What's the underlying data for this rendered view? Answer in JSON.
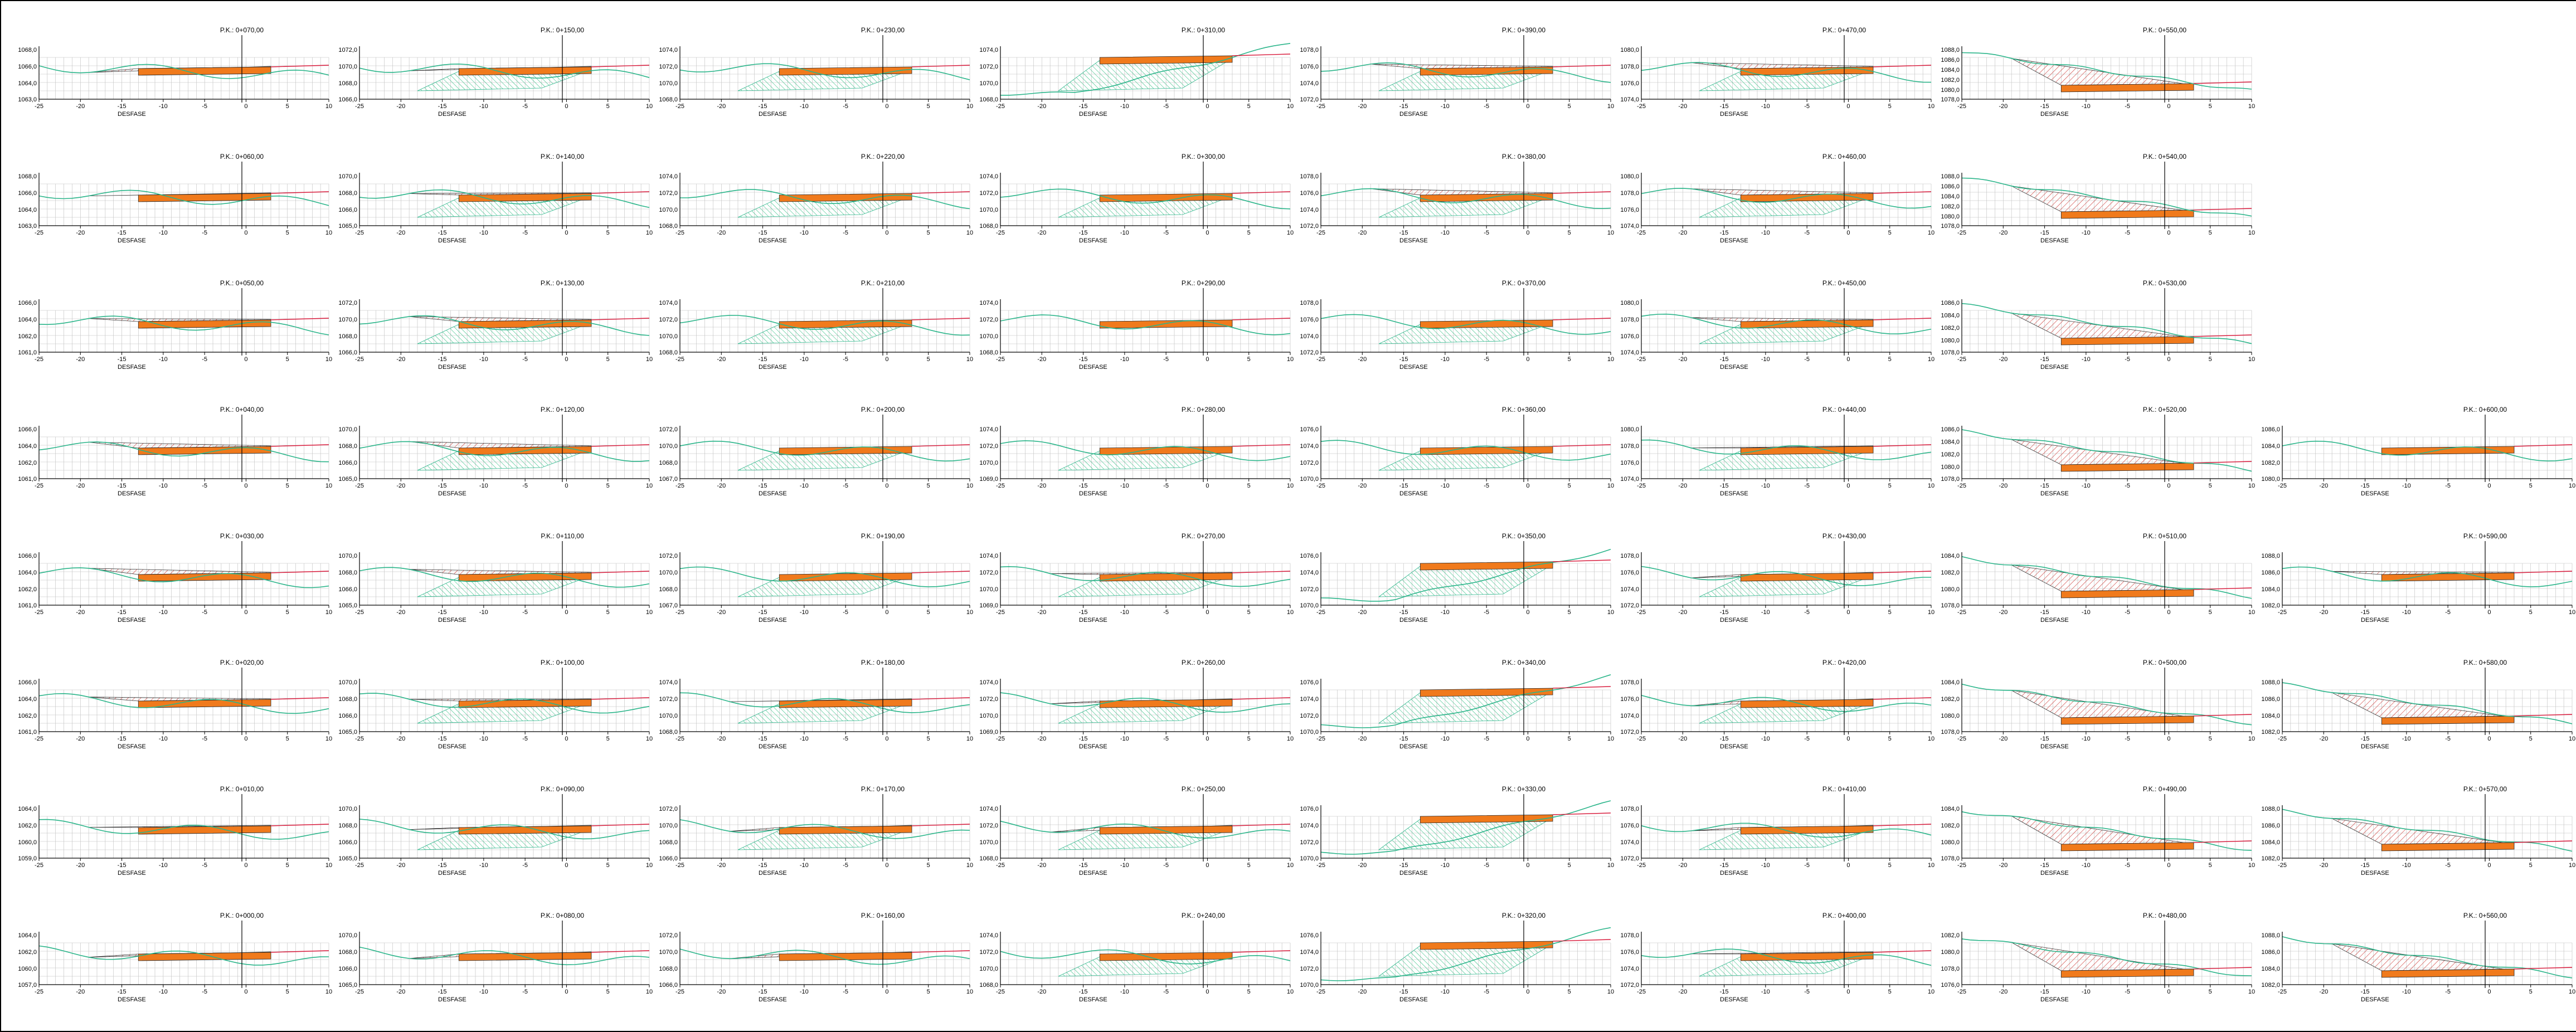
{
  "axis_label": "DESFASE",
  "offset_ticks": [
    "-25",
    "-20",
    "-15",
    "-10",
    "-5",
    "0",
    "5",
    "10"
  ],
  "colors": {
    "terrain": "#2bb58a",
    "design": "#d81b3c",
    "fill_pad": "#f07a1c",
    "fill_top": "#f6a21e",
    "cut_hatch": "#c9302c",
    "embank_hatch": "#20b878",
    "grid": "#bdbdbd",
    "axis": "#000000"
  },
  "columns": [
    {
      "sections": [
        {
          "station": "P.K.: 0+070,00",
          "elev_labels": [
            "1068,0",
            "1066,0",
            "1064,0",
            "1063,0"
          ],
          "shape": "cut"
        },
        {
          "station": "P.K.: 0+060,00",
          "elev_labels": [
            "1068,0",
            "1066,0",
            "1064,0",
            "1063,0"
          ],
          "shape": "cut"
        },
        {
          "station": "P.K.: 0+050,00",
          "elev_labels": [
            "1066,0",
            "1064,0",
            "1062,0",
            "1061,0"
          ],
          "shape": "cut"
        },
        {
          "station": "P.K.: 0+040,00",
          "elev_labels": [
            "1066,0",
            "1064,0",
            "1062,0",
            "1061,0"
          ],
          "shape": "cut"
        },
        {
          "station": "P.K.: 0+030,00",
          "elev_labels": [
            "1066,0",
            "1064,0",
            "1062,0",
            "1061,0"
          ],
          "shape": "cut"
        },
        {
          "station": "P.K.: 0+020,00",
          "elev_labels": [
            "1066,0",
            "1064,0",
            "1062,0",
            "1061,0"
          ],
          "shape": "cut"
        },
        {
          "station": "P.K.: 0+010,00",
          "elev_labels": [
            "1064,0",
            "1062,0",
            "1060,0",
            "1059,0"
          ],
          "shape": "cut"
        },
        {
          "station": "P.K.: 0+000,00",
          "elev_labels": [
            "1064,0",
            "1062,0",
            "1060,0",
            "1057,0"
          ],
          "shape": "cut"
        }
      ]
    },
    {
      "sections": [
        {
          "station": "P.K.: 0+150,00",
          "elev_labels": [
            "1072,0",
            "1070,0",
            "1068,0",
            "1066,0"
          ],
          "shape": "mixed"
        },
        {
          "station": "P.K.: 0+140,00",
          "elev_labels": [
            "1070,0",
            "1068,0",
            "1066,0",
            "1065,0"
          ],
          "shape": "mixed"
        },
        {
          "station": "P.K.: 0+130,00",
          "elev_labels": [
            "1072,0",
            "1070,0",
            "1068,0",
            "1066,0"
          ],
          "shape": "mixed"
        },
        {
          "station": "P.K.: 0+120,00",
          "elev_labels": [
            "1070,0",
            "1068,0",
            "1066,0",
            "1065,0"
          ],
          "shape": "mixed"
        },
        {
          "station": "P.K.: 0+110,00",
          "elev_labels": [
            "1070,0",
            "1068,0",
            "1066,0",
            "1065,0"
          ],
          "shape": "mixed"
        },
        {
          "station": "P.K.: 0+100,00",
          "elev_labels": [
            "1070,0",
            "1068,0",
            "1066,0",
            "1065,0"
          ],
          "shape": "mixed"
        },
        {
          "station": "P.K.: 0+090,00",
          "elev_labels": [
            "1070,0",
            "1068,0",
            "1066,0",
            "1065,0"
          ],
          "shape": "mixed"
        },
        {
          "station": "P.K.: 0+080,00",
          "elev_labels": [
            "1070,0",
            "1068,0",
            "1066,0",
            "1065,0"
          ],
          "shape": "cut"
        }
      ]
    },
    {
      "sections": [
        {
          "station": "P.K.: 0+230,00",
          "elev_labels": [
            "1074,0",
            "1072,0",
            "1070,0",
            "1068,0"
          ],
          "shape": "fill"
        },
        {
          "station": "P.K.: 0+220,00",
          "elev_labels": [
            "1074,0",
            "1072,0",
            "1070,0",
            "1068,0"
          ],
          "shape": "fill"
        },
        {
          "station": "P.K.: 0+210,00",
          "elev_labels": [
            "1074,0",
            "1072,0",
            "1070,0",
            "1068,0"
          ],
          "shape": "fill"
        },
        {
          "station": "P.K.: 0+200,00",
          "elev_labels": [
            "1072,0",
            "1070,0",
            "1068,0",
            "1067,0"
          ],
          "shape": "fill"
        },
        {
          "station": "P.K.: 0+190,00",
          "elev_labels": [
            "1072,0",
            "1070,0",
            "1068,0",
            "1067,0"
          ],
          "shape": "fill"
        },
        {
          "station": "P.K.: 0+180,00",
          "elev_labels": [
            "1074,0",
            "1072,0",
            "1070,0",
            "1068,0"
          ],
          "shape": "mixed"
        },
        {
          "station": "P.K.: 0+170,00",
          "elev_labels": [
            "1072,0",
            "1070,0",
            "1068,0",
            "1066,0"
          ],
          "shape": "mixed"
        },
        {
          "station": "P.K.: 0+160,00",
          "elev_labels": [
            "1072,0",
            "1070,0",
            "1068,0",
            "1066,0"
          ],
          "shape": "cut"
        }
      ]
    },
    {
      "sections": [
        {
          "station": "P.K.: 0+310,00",
          "elev_labels": [
            "1074,0",
            "1072,0",
            "1070,0",
            "1068,0"
          ],
          "shape": "bigfill"
        },
        {
          "station": "P.K.: 0+300,00",
          "elev_labels": [
            "1074,0",
            "1072,0",
            "1070,0",
            "1068,0"
          ],
          "shape": "fill"
        },
        {
          "station": "P.K.: 0+290,00",
          "elev_labels": [
            "1074,0",
            "1072,0",
            "1070,0",
            "1068,0"
          ],
          "shape": "flat"
        },
        {
          "station": "P.K.: 0+280,00",
          "elev_labels": [
            "1074,0",
            "1072,0",
            "1070,0",
            "1069,0"
          ],
          "shape": "fill"
        },
        {
          "station": "P.K.: 0+270,00",
          "elev_labels": [
            "1074,0",
            "1072,0",
            "1070,0",
            "1069,0"
          ],
          "shape": "mixed"
        },
        {
          "station": "P.K.: 0+260,00",
          "elev_labels": [
            "1074,0",
            "1072,0",
            "1070,0",
            "1069,0"
          ],
          "shape": "mixed"
        },
        {
          "station": "P.K.: 0+250,00",
          "elev_labels": [
            "1074,0",
            "1072,0",
            "1070,0",
            "1068,0"
          ],
          "shape": "mixed"
        },
        {
          "station": "P.K.: 0+240,00",
          "elev_labels": [
            "1074,0",
            "1072,0",
            "1070,0",
            "1068,0"
          ],
          "shape": "fill"
        }
      ]
    },
    {
      "sections": [
        {
          "station": "P.K.: 0+390,00",
          "elev_labels": [
            "1078,0",
            "1076,0",
            "1074,0",
            "1072,0"
          ],
          "shape": "mixed"
        },
        {
          "station": "P.K.: 0+380,00",
          "elev_labels": [
            "1078,0",
            "1076,0",
            "1074,0",
            "1072,0"
          ],
          "shape": "mixed"
        },
        {
          "station": "P.K.: 0+370,00",
          "elev_labels": [
            "1078,0",
            "1076,0",
            "1074,0",
            "1072,0"
          ],
          "shape": "fill"
        },
        {
          "station": "P.K.: 0+360,00",
          "elev_labels": [
            "1076,0",
            "1074,0",
            "1072,0",
            "1070,0"
          ],
          "shape": "fill"
        },
        {
          "station": "P.K.: 0+350,00",
          "elev_labels": [
            "1076,0",
            "1074,0",
            "1072,0",
            "1070,0"
          ],
          "shape": "bigfill"
        },
        {
          "station": "P.K.: 0+340,00",
          "elev_labels": [
            "1076,0",
            "1074,0",
            "1072,0",
            "1070,0"
          ],
          "shape": "bigfill"
        },
        {
          "station": "P.K.: 0+330,00",
          "elev_labels": [
            "1076,0",
            "1074,0",
            "1072,0",
            "1070,0"
          ],
          "shape": "bigfill"
        },
        {
          "station": "P.K.: 0+320,00",
          "elev_labels": [
            "1076,0",
            "1074,0",
            "1072,0",
            "1070,0"
          ],
          "shape": "bigfill"
        }
      ]
    },
    {
      "sections": [
        {
          "station": "P.K.: 0+470,00",
          "elev_labels": [
            "1080,0",
            "1078,0",
            "1076,0",
            "1074,0"
          ],
          "shape": "mixed"
        },
        {
          "station": "P.K.: 0+460,00",
          "elev_labels": [
            "1080,0",
            "1078,0",
            "1076,0",
            "1074,0"
          ],
          "shape": "mixed"
        },
        {
          "station": "P.K.: 0+450,00",
          "elev_labels": [
            "1080,0",
            "1078,0",
            "1076,0",
            "1074,0"
          ],
          "shape": "mixed"
        },
        {
          "station": "P.K.: 0+440,00",
          "elev_labels": [
            "1080,0",
            "1078,0",
            "1076,0",
            "1074,0"
          ],
          "shape": "mixed"
        },
        {
          "station": "P.K.: 0+430,00",
          "elev_labels": [
            "1078,0",
            "1076,0",
            "1074,0",
            "1072,0"
          ],
          "shape": "mixed"
        },
        {
          "station": "P.K.: 0+420,00",
          "elev_labels": [
            "1078,0",
            "1076,0",
            "1074,0",
            "1072,0"
          ],
          "shape": "mixed"
        },
        {
          "station": "P.K.: 0+410,00",
          "elev_labels": [
            "1078,0",
            "1076,0",
            "1074,0",
            "1072,0"
          ],
          "shape": "mixed"
        },
        {
          "station": "P.K.: 0+400,00",
          "elev_labels": [
            "1078,0",
            "1076,0",
            "1074,0",
            "1072,0"
          ],
          "shape": "mixed"
        }
      ]
    },
    {
      "sections": [
        {
          "station": "P.K.: 0+550,00",
          "elev_labels": [
            "1088,0",
            "1086,0",
            "1084,0",
            "1082,0",
            "1080,0",
            "1078,0"
          ],
          "shape": "bigcut"
        },
        {
          "station": "P.K.: 0+540,00",
          "elev_labels": [
            "1088,0",
            "1086,0",
            "1084,0",
            "1082,0",
            "1080,0",
            "1078,0"
          ],
          "shape": "bigcut"
        },
        {
          "station": "P.K.: 0+530,00",
          "elev_labels": [
            "1086,0",
            "1084,0",
            "1082,0",
            "1080,0",
            "1078,0"
          ],
          "shape": "bigcut"
        },
        {
          "station": "P.K.: 0+520,00",
          "elev_labels": [
            "1086,0",
            "1084,0",
            "1082,0",
            "1080,0",
            "1078,0"
          ],
          "shape": "bigcut"
        },
        {
          "station": "P.K.: 0+510,00",
          "elev_labels": [
            "1084,0",
            "1082,0",
            "1080,0",
            "1078,0"
          ],
          "shape": "bigcut"
        },
        {
          "station": "P.K.: 0+500,00",
          "elev_labels": [
            "1084,0",
            "1082,0",
            "1080,0",
            "1078,0"
          ],
          "shape": "bigcut"
        },
        {
          "station": "P.K.: 0+490,00",
          "elev_labels": [
            "1084,0",
            "1082,0",
            "1080,0",
            "1078,0"
          ],
          "shape": "bigcut"
        },
        {
          "station": "P.K.: 0+480,00",
          "elev_labels": [
            "1082,0",
            "1080,0",
            "1078,0",
            "1076,0"
          ],
          "shape": "bigcut"
        }
      ]
    },
    {
      "sections": [
        {
          "station": "P.K.: 0+600,00",
          "elev_labels": [
            "1086,0",
            "1084,0",
            "1082,0",
            "1080,0"
          ],
          "shape": "flat"
        },
        {
          "station": "P.K.: 0+590,00",
          "elev_labels": [
            "1088,0",
            "1086,0",
            "1084,0",
            "1082,0"
          ],
          "shape": "cut"
        },
        {
          "station": "P.K.: 0+580,00",
          "elev_labels": [
            "1088,0",
            "1086,0",
            "1084,0",
            "1082,0"
          ],
          "shape": "bigcut"
        },
        {
          "station": "P.K.: 0+570,00",
          "elev_labels": [
            "1088,0",
            "1086,0",
            "1084,0",
            "1082,0"
          ],
          "shape": "bigcut"
        },
        {
          "station": "P.K.: 0+560,00",
          "elev_labels": [
            "1088,0",
            "1086,0",
            "1084,0",
            "1082,0"
          ],
          "shape": "bigcut"
        }
      ]
    }
  ]
}
